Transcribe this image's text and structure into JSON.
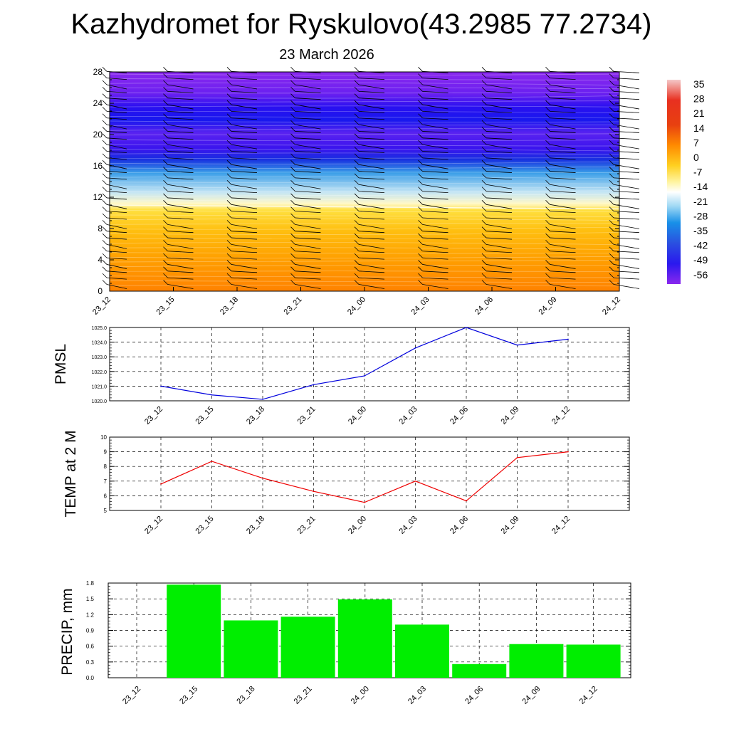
{
  "title": "Kazhydromet for Ryskulovo(43.2985 77.2734)",
  "subtitle": "23 March 2026",
  "colors": {
    "pmsl_line": "#0000dd",
    "temp_line": "#ee0000",
    "precip_bar": "#00ee00"
  },
  "chart_data": [
    {
      "type": "heatmap",
      "name": "vertical temperature cross-section with wind barbs",
      "x_tick_labels": [
        "23_12",
        "23_15",
        "23_18",
        "23_21",
        "24_00",
        "24_03",
        "24_06",
        "24_09",
        "24_12"
      ],
      "ylim": [
        0,
        28
      ],
      "y_ticks": [
        0,
        4,
        8,
        12,
        16,
        20,
        24,
        28
      ],
      "colorbar_labels": [
        "35",
        "28",
        "21",
        "14",
        "7",
        "0",
        "-7",
        "-14",
        "-21",
        "-28",
        "-35",
        "-42",
        "-49",
        "-56"
      ],
      "freezing_level_approx": [
        11.0,
        10.5
      ],
      "wind_barb_columns": 9
    },
    {
      "type": "line",
      "ylabel": "PMSL",
      "x": [
        "23_12",
        "23_15",
        "23_18",
        "23_21",
        "24_00",
        "24_03",
        "24_06",
        "24_09",
        "24_12"
      ],
      "values": [
        1021.0,
        1020.4,
        1020.1,
        1021.1,
        1021.7,
        1023.6,
        1025.0,
        1023.8,
        1024.2
      ],
      "ylim": [
        1020.0,
        1025.0
      ],
      "y_tick_labels": [
        "1020.0",
        "1021.0",
        "1022.0",
        "1023.0",
        "1024.0",
        "1025.0"
      ]
    },
    {
      "type": "line",
      "ylabel": "TEMP at 2 M",
      "x": [
        "23_12",
        "23_15",
        "23_18",
        "23_21",
        "24_00",
        "24_03",
        "24_06",
        "24_09",
        "24_12"
      ],
      "values": [
        6.8,
        8.35,
        7.2,
        6.3,
        5.55,
        7.0,
        5.65,
        8.6,
        9.0
      ],
      "ylim": [
        5,
        10
      ],
      "y_tick_labels": [
        "5",
        "6",
        "7",
        "8",
        "9",
        "10"
      ]
    },
    {
      "type": "bar",
      "ylabel": "PRECIP, mm",
      "categories": [
        "23_12",
        "23_15",
        "23_18",
        "23_21",
        "24_00",
        "24_03",
        "24_06",
        "24_09",
        "24_12"
      ],
      "values": [
        0.0,
        1.77,
        1.09,
        1.16,
        1.49,
        1.01,
        0.26,
        0.64,
        0.63
      ],
      "ylim": [
        0.0,
        1.8
      ],
      "y_tick_labels": [
        "0.0",
        "0.3",
        "0.6",
        "0.9",
        "1.2",
        "1.5",
        "1.8"
      ]
    }
  ]
}
